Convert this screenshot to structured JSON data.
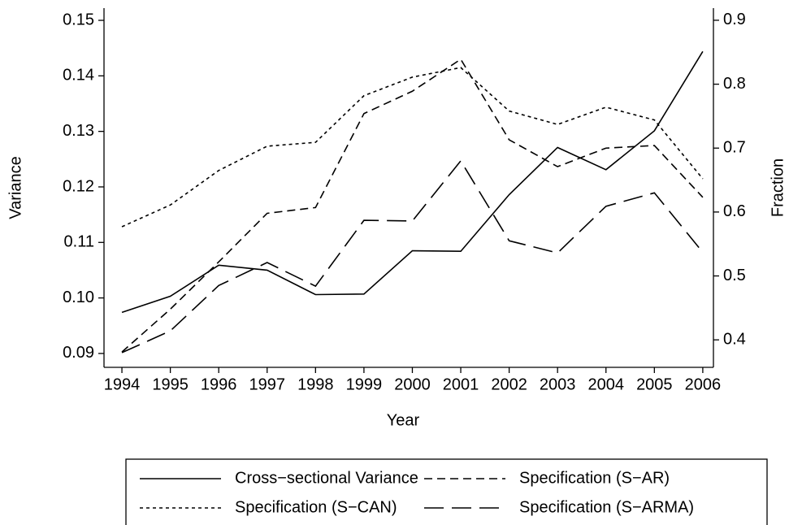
{
  "chart_data": {
    "type": "line",
    "x_label": "Year",
    "y_label": "Variance",
    "y2_label": "Fraction",
    "x": [
      1994,
      1995,
      1996,
      1997,
      1998,
      1999,
      2000,
      2001,
      2002,
      2003,
      2004,
      2005,
      2006
    ],
    "xlim": [
      1993.63,
      2006.22
    ],
    "xticks": [
      1994,
      1995,
      1996,
      1997,
      1998,
      1999,
      2000,
      2001,
      2002,
      2003,
      2004,
      2005,
      2006
    ],
    "ylim": [
      0.0875,
      0.1522
    ],
    "yticks": [
      {
        "value": 0.09,
        "label": "0.09"
      },
      {
        "value": 0.1,
        "label": "0.10"
      },
      {
        "value": 0.11,
        "label": "0.11"
      },
      {
        "value": 0.12,
        "label": "0.12"
      },
      {
        "value": 0.13,
        "label": "0.13"
      },
      {
        "value": 0.14,
        "label": "0.14"
      },
      {
        "value": 0.15,
        "label": "0.15"
      }
    ],
    "y2lim": [
      0.357,
      0.919
    ],
    "y2ticks": [
      0.4,
      0.5,
      0.6,
      0.7,
      0.8,
      0.9
    ],
    "series": [
      {
        "name": "Cross−sectional Variance",
        "color": "#000000",
        "dash": "solid",
        "values": [
          0.0974,
          0.1003,
          0.1059,
          0.105,
          0.1006,
          0.1007,
          0.1085,
          0.1084,
          0.1186,
          0.1271,
          0.1231,
          0.1301,
          0.1444
        ]
      },
      {
        "name": "Specification (S−AR)",
        "color": "#000000",
        "dash": "dashed",
        "axis": "y2",
        "values": [
          0.381,
          0.448,
          0.522,
          0.598,
          0.607,
          0.754,
          0.789,
          0.839,
          0.713,
          0.671,
          0.7,
          0.704,
          0.623
        ]
      },
      {
        "name": "Specification (S−CAN)",
        "color": "#000000",
        "dash": "dotted",
        "axis": "y2",
        "values": [
          0.577,
          0.611,
          0.665,
          0.703,
          0.709,
          0.782,
          0.811,
          0.826,
          0.758,
          0.737,
          0.764,
          0.744,
          0.652
        ]
      },
      {
        "name": "Specification (S−ARMA)",
        "color": "#000000",
        "dash": "longdash",
        "axis": "y2",
        "values": [
          0.38,
          0.414,
          0.485,
          0.521,
          0.484,
          0.587,
          0.586,
          0.68,
          0.555,
          0.536,
          0.609,
          0.63,
          0.537
        ]
      }
    ]
  }
}
